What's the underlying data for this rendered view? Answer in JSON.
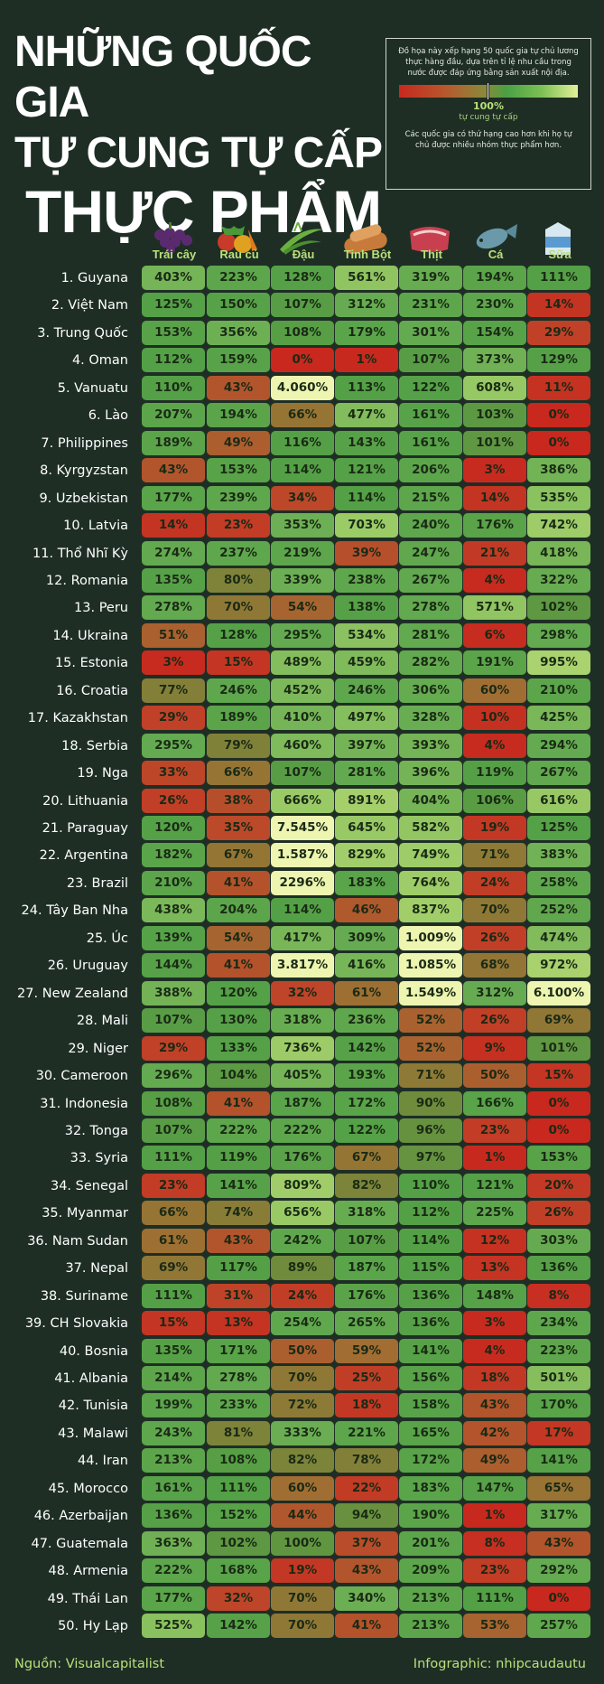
{
  "title": {
    "line1": "NHỮNG QUỐC GIA",
    "line2": "TỰ CUNG TỰ CẤP",
    "line3": "THỰC PHẨM"
  },
  "legend": {
    "description": "Đồ họa này xếp hạng 50 quốc gia tự chủ lương thực hàng đầu, dựa trên tỉ lệ nhu cầu trong nước được đáp ứng bằng sản xuất nội địa.",
    "marker_value": "100%",
    "marker_label": "tự cung tự cấp",
    "note": "Các quốc gia có thứ hạng cao hơn khi họ tự chủ được nhiều nhóm thực phẩm hơn.",
    "gradient": [
      "#c8281e",
      "#b8562c",
      "#8a8a3a",
      "#4aa043",
      "#7dc054",
      "#e4f09a"
    ]
  },
  "footer": {
    "source": "Nguồn: Visualcapitalist",
    "credit": "Infographic: nhipcaudautu"
  },
  "chart_data": {
    "type": "table",
    "columns": [
      {
        "label": "Trái cây",
        "icon": "grapes-icon"
      },
      {
        "label": "Rau củ",
        "icon": "vegetables-icon"
      },
      {
        "label": "Đậu",
        "icon": "beans-icon"
      },
      {
        "label": "Tinh Bột",
        "icon": "bread-icon"
      },
      {
        "label": "Thịt",
        "icon": "meat-icon"
      },
      {
        "label": "Cá",
        "icon": "fish-icon"
      },
      {
        "label": "Sữa",
        "icon": "milk-icon"
      }
    ],
    "rows": [
      {
        "label": "1. Guyana",
        "values": [
          "403%",
          "223%",
          "128%",
          "561%",
          "319%",
          "194%",
          "111%"
        ],
        "pct": [
          403,
          223,
          128,
          561,
          319,
          194,
          111
        ]
      },
      {
        "label": "2. Việt Nam",
        "values": [
          "125%",
          "150%",
          "107%",
          "312%",
          "231%",
          "230%",
          "14%"
        ],
        "pct": [
          125,
          150,
          107,
          312,
          231,
          230,
          14
        ]
      },
      {
        "label": "3. Trung Quốc",
        "values": [
          "153%",
          "356%",
          "108%",
          "179%",
          "301%",
          "154%",
          "29%"
        ],
        "pct": [
          153,
          356,
          108,
          179,
          301,
          154,
          29
        ]
      },
      {
        "label": "4. Oman",
        "values": [
          "112%",
          "159%",
          "0%",
          "1%",
          "107%",
          "373%",
          "129%"
        ],
        "pct": [
          112,
          159,
          0,
          1,
          107,
          373,
          129
        ]
      },
      {
        "label": "5. Vanuatu",
        "values": [
          "110%",
          "43%",
          "4.060%",
          "113%",
          "122%",
          "608%",
          "11%"
        ],
        "pct": [
          110,
          43,
          4060,
          113,
          122,
          608,
          11
        ]
      },
      {
        "label": "6. Lào",
        "values": [
          "207%",
          "194%",
          "66%",
          "477%",
          "161%",
          "103%",
          "0%"
        ],
        "pct": [
          207,
          194,
          66,
          477,
          161,
          103,
          0
        ]
      },
      {
        "label": "7. Philippines",
        "values": [
          "189%",
          "49%",
          "116%",
          "143%",
          "161%",
          "101%",
          "0%"
        ],
        "pct": [
          189,
          49,
          116,
          143,
          161,
          101,
          0
        ]
      },
      {
        "label": "8. Kyrgyzstan",
        "values": [
          "43%",
          "153%",
          "114%",
          "121%",
          "206%",
          "3%",
          "386%"
        ],
        "pct": [
          43,
          153,
          114,
          121,
          206,
          3,
          386
        ]
      },
      {
        "label": "9. Uzbekistan",
        "values": [
          "177%",
          "239%",
          "34%",
          "114%",
          "215%",
          "14%",
          "535%"
        ],
        "pct": [
          177,
          239,
          34,
          114,
          215,
          14,
          535
        ]
      },
      {
        "label": "10. Latvia",
        "values": [
          "14%",
          "23%",
          "353%",
          "703%",
          "240%",
          "176%",
          "742%"
        ],
        "pct": [
          14,
          23,
          353,
          703,
          240,
          176,
          742
        ]
      },
      {
        "label": "11. Thổ Nhĩ Kỳ",
        "values": [
          "274%",
          "237%",
          "219%",
          "39%",
          "247%",
          "21%",
          "418%"
        ],
        "pct": [
          274,
          237,
          219,
          39,
          247,
          21,
          418
        ]
      },
      {
        "label": "12. Romania",
        "values": [
          "135%",
          "80%",
          "339%",
          "238%",
          "267%",
          "4%",
          "322%"
        ],
        "pct": [
          135,
          80,
          339,
          238,
          267,
          4,
          322
        ]
      },
      {
        "label": "13. Peru",
        "values": [
          "278%",
          "70%",
          "54%",
          "138%",
          "278%",
          "571%",
          "102%"
        ],
        "pct": [
          278,
          70,
          54,
          138,
          278,
          571,
          102
        ]
      },
      {
        "label": "14. Ukraina",
        "values": [
          "51%",
          "128%",
          "295%",
          "534%",
          "281%",
          "6%",
          "298%"
        ],
        "pct": [
          51,
          128,
          295,
          534,
          281,
          6,
          298
        ]
      },
      {
        "label": "15. Estonia",
        "values": [
          "3%",
          "15%",
          "489%",
          "459%",
          "282%",
          "191%",
          "995%"
        ],
        "pct": [
          3,
          15,
          489,
          459,
          282,
          191,
          995
        ]
      },
      {
        "label": "16. Croatia",
        "values": [
          "77%",
          "246%",
          "452%",
          "246%",
          "306%",
          "60%",
          "210%"
        ],
        "pct": [
          77,
          246,
          452,
          246,
          306,
          60,
          210
        ]
      },
      {
        "label": "17. Kazakhstan",
        "values": [
          "29%",
          "189%",
          "410%",
          "497%",
          "328%",
          "10%",
          "425%"
        ],
        "pct": [
          29,
          189,
          410,
          497,
          328,
          10,
          425
        ]
      },
      {
        "label": "18. Serbia",
        "values": [
          "295%",
          "79%",
          "460%",
          "397%",
          "393%",
          "4%",
          "294%"
        ],
        "pct": [
          295,
          79,
          460,
          397,
          393,
          4,
          294
        ]
      },
      {
        "label": "19. Nga",
        "values": [
          "33%",
          "66%",
          "107%",
          "281%",
          "396%",
          "119%",
          "267%"
        ],
        "pct": [
          33,
          66,
          107,
          281,
          396,
          119,
          267
        ]
      },
      {
        "label": "20. Lithuania",
        "values": [
          "26%",
          "38%",
          "666%",
          "891%",
          "404%",
          "106%",
          "616%"
        ],
        "pct": [
          26,
          38,
          666,
          891,
          404,
          106,
          616
        ]
      },
      {
        "label": "21. Paraguay",
        "values": [
          "120%",
          "35%",
          "7.545%",
          "645%",
          "582%",
          "19%",
          "125%"
        ],
        "pct": [
          120,
          35,
          7545,
          645,
          582,
          19,
          125
        ]
      },
      {
        "label": "22. Argentina",
        "values": [
          "182%",
          "67%",
          "1.587%",
          "829%",
          "749%",
          "71%",
          "383%"
        ],
        "pct": [
          182,
          67,
          1587,
          829,
          749,
          71,
          383
        ]
      },
      {
        "label": "23. Brazil",
        "values": [
          "210%",
          "41%",
          "2296%",
          "183%",
          "764%",
          "24%",
          "258%"
        ],
        "pct": [
          210,
          41,
          2296,
          183,
          764,
          24,
          258
        ]
      },
      {
        "label": "24. Tây Ban Nha",
        "values": [
          "438%",
          "204%",
          "114%",
          "46%",
          "837%",
          "70%",
          "252%"
        ],
        "pct": [
          438,
          204,
          114,
          46,
          837,
          70,
          252
        ]
      },
      {
        "label": "25. Úc",
        "values": [
          "139%",
          "54%",
          "417%",
          "309%",
          "1.009%",
          "26%",
          "474%"
        ],
        "pct": [
          139,
          54,
          417,
          309,
          1009,
          26,
          474
        ]
      },
      {
        "label": "26. Uruguay",
        "values": [
          "144%",
          "41%",
          "3.817%",
          "416%",
          "1.085%",
          "68%",
          "972%"
        ],
        "pct": [
          144,
          41,
          3817,
          416,
          1085,
          68,
          972
        ]
      },
      {
        "label": "27. New Zealand",
        "values": [
          "388%",
          "120%",
          "32%",
          "61%",
          "1.549%",
          "312%",
          "6.100%"
        ],
        "pct": [
          388,
          120,
          32,
          61,
          1549,
          312,
          6100
        ]
      },
      {
        "label": "28. Mali",
        "values": [
          "107%",
          "130%",
          "318%",
          "236%",
          "52%",
          "26%",
          "69%"
        ],
        "pct": [
          107,
          130,
          318,
          236,
          52,
          26,
          69
        ]
      },
      {
        "label": "29. Niger",
        "values": [
          "29%",
          "133%",
          "736%",
          "142%",
          "52%",
          "9%",
          "101%"
        ],
        "pct": [
          29,
          133,
          736,
          142,
          52,
          9,
          101
        ]
      },
      {
        "label": "30. Cameroon",
        "values": [
          "296%",
          "104%",
          "405%",
          "193%",
          "71%",
          "50%",
          "15%"
        ],
        "pct": [
          296,
          104,
          405,
          193,
          71,
          50,
          15
        ]
      },
      {
        "label": "31. Indonesia",
        "values": [
          "108%",
          "41%",
          "187%",
          "172%",
          "90%",
          "166%",
          "0%"
        ],
        "pct": [
          108,
          41,
          187,
          172,
          90,
          166,
          0
        ]
      },
      {
        "label": "32. Tonga",
        "values": [
          "107%",
          "222%",
          "222%",
          "122%",
          "96%",
          "23%",
          "0%"
        ],
        "pct": [
          107,
          222,
          222,
          122,
          96,
          23,
          0
        ]
      },
      {
        "label": "33. Syria",
        "values": [
          "111%",
          "119%",
          "176%",
          "67%",
          "97%",
          "1%",
          "153%"
        ],
        "pct": [
          111,
          119,
          176,
          67,
          97,
          1,
          153
        ]
      },
      {
        "label": "34. Senegal",
        "values": [
          "23%",
          "141%",
          "809%",
          "82%",
          "110%",
          "121%",
          "20%"
        ],
        "pct": [
          23,
          141,
          809,
          82,
          110,
          121,
          20
        ]
      },
      {
        "label": "35. Myanmar",
        "values": [
          "66%",
          "74%",
          "656%",
          "318%",
          "112%",
          "225%",
          "26%"
        ],
        "pct": [
          66,
          74,
          656,
          318,
          112,
          225,
          26
        ]
      },
      {
        "label": "36. Nam Sudan",
        "values": [
          "61%",
          "43%",
          "242%",
          "107%",
          "114%",
          "12%",
          "303%"
        ],
        "pct": [
          61,
          43,
          242,
          107,
          114,
          12,
          303
        ]
      },
      {
        "label": "37. Nepal",
        "values": [
          "69%",
          "117%",
          "89%",
          "187%",
          "115%",
          "13%",
          "136%"
        ],
        "pct": [
          69,
          117,
          89,
          187,
          115,
          13,
          136
        ]
      },
      {
        "label": "38. Suriname",
        "values": [
          "111%",
          "31%",
          "24%",
          "176%",
          "136%",
          "148%",
          "8%"
        ],
        "pct": [
          111,
          31,
          24,
          176,
          136,
          148,
          8
        ]
      },
      {
        "label": "39. CH Slovakia",
        "values": [
          "15%",
          "13%",
          "254%",
          "265%",
          "136%",
          "3%",
          "234%"
        ],
        "pct": [
          15,
          13,
          254,
          265,
          136,
          3,
          234
        ]
      },
      {
        "label": "40. Bosnia",
        "values": [
          "135%",
          "171%",
          "50%",
          "59%",
          "141%",
          "4%",
          "223%"
        ],
        "pct": [
          135,
          171,
          50,
          59,
          141,
          4,
          223
        ]
      },
      {
        "label": "41. Albania",
        "values": [
          "214%",
          "278%",
          "70%",
          "25%",
          "156%",
          "18%",
          "501%"
        ],
        "pct": [
          214,
          278,
          70,
          25,
          156,
          18,
          501
        ]
      },
      {
        "label": "42. Tunisia",
        "values": [
          "199%",
          "233%",
          "72%",
          "18%",
          "158%",
          "43%",
          "170%"
        ],
        "pct": [
          199,
          233,
          72,
          18,
          158,
          43,
          170
        ]
      },
      {
        "label": "43. Malawi",
        "values": [
          "243%",
          "81%",
          "333%",
          "221%",
          "165%",
          "42%",
          "17%"
        ],
        "pct": [
          243,
          81,
          333,
          221,
          165,
          42,
          17
        ]
      },
      {
        "label": "44. Iran",
        "values": [
          "213%",
          "108%",
          "82%",
          "78%",
          "172%",
          "49%",
          "141%"
        ],
        "pct": [
          213,
          108,
          82,
          78,
          172,
          49,
          141
        ]
      },
      {
        "label": "45. Morocco",
        "values": [
          "161%",
          "111%",
          "60%",
          "22%",
          "183%",
          "147%",
          "65%"
        ],
        "pct": [
          161,
          111,
          60,
          22,
          183,
          147,
          65
        ]
      },
      {
        "label": "46. Azerbaijan",
        "values": [
          "136%",
          "152%",
          "44%",
          "94%",
          "190%",
          "1%",
          "317%"
        ],
        "pct": [
          136,
          152,
          44,
          94,
          190,
          1,
          317
        ]
      },
      {
        "label": "47. Guatemala",
        "values": [
          "363%",
          "102%",
          "100%",
          "37%",
          "201%",
          "8%",
          "43%"
        ],
        "pct": [
          363,
          102,
          100,
          37,
          201,
          8,
          43
        ]
      },
      {
        "label": "48. Armenia",
        "values": [
          "222%",
          "168%",
          "19%",
          "43%",
          "209%",
          "23%",
          "292%"
        ],
        "pct": [
          222,
          168,
          19,
          43,
          209,
          23,
          292
        ]
      },
      {
        "label": "49. Thái Lan",
        "values": [
          "177%",
          "32%",
          "70%",
          "340%",
          "213%",
          "111%",
          "0%"
        ],
        "pct": [
          177,
          32,
          70,
          340,
          213,
          111,
          0
        ]
      },
      {
        "label": "50. Hy Lạp",
        "values": [
          "525%",
          "142%",
          "70%",
          "41%",
          "213%",
          "53%",
          "257%"
        ],
        "pct": [
          525,
          142,
          70,
          41,
          213,
          53,
          257
        ]
      }
    ]
  }
}
